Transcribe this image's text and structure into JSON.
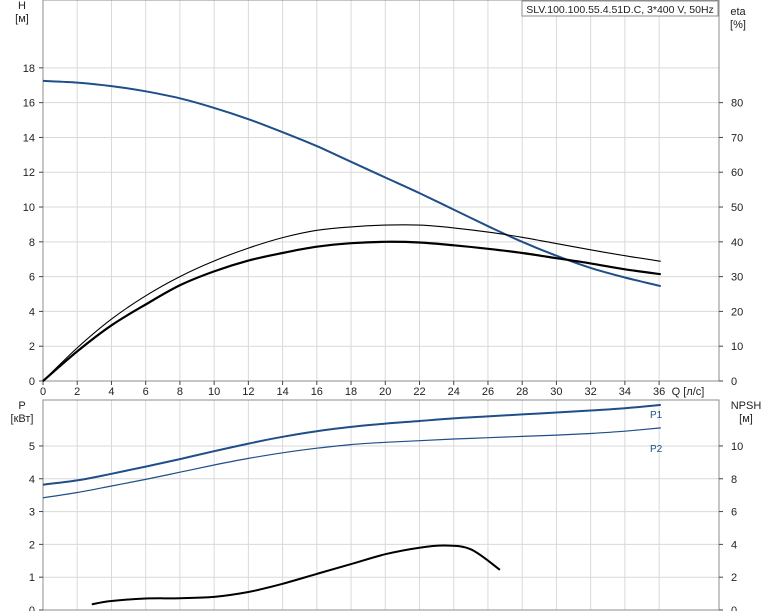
{
  "header": {
    "pump_label": "SLV.100.100.55.4.51D.C, 3*400 V, 50Hz"
  },
  "colors": {
    "curve_blue": "#1f4e88",
    "curve_black": "#000000",
    "grid": "#d9d9d9"
  },
  "chart_data": [
    {
      "type": "line",
      "title": "",
      "xlabel": "Q [л/с]",
      "ylabel_left": [
        "H",
        "[м]"
      ],
      "ylabel_right": [
        "eta",
        "[%]"
      ],
      "xlim": [
        0,
        39.5
      ],
      "ylim_left": [
        0,
        21.9
      ],
      "ylim_right": [
        0,
        109.5
      ],
      "x_ticks": [
        "0",
        "2",
        "4",
        "6",
        "8",
        "10",
        "12",
        "14",
        "16",
        "18",
        "20",
        "22",
        "24",
        "26",
        "28",
        "30",
        "32",
        "34",
        "36"
      ],
      "y_left_ticks": [
        "0",
        "2",
        "4",
        "6",
        "8",
        "10",
        "12",
        "14",
        "16",
        "18"
      ],
      "y_right_ticks": [
        "0",
        "10",
        "20",
        "30",
        "40",
        "50",
        "60",
        "70",
        "80"
      ],
      "grid": true,
      "series": [
        {
          "name": "",
          "axis": "left",
          "color": "blue",
          "x": [
            0,
            2,
            4,
            6,
            8,
            10,
            12,
            14,
            16,
            18,
            20,
            22,
            24,
            26,
            28,
            30,
            32,
            34,
            36.1
          ],
          "y": [
            17.25,
            17.15,
            16.95,
            16.65,
            16.25,
            15.7,
            15.05,
            14.3,
            13.5,
            12.6,
            11.7,
            10.8,
            9.85,
            8.9,
            8.0,
            7.2,
            6.5,
            5.95,
            5.45
          ]
        },
        {
          "name": "",
          "axis": "right",
          "color": "black-thick",
          "x": [
            0,
            2,
            4,
            6,
            8,
            10,
            12,
            14,
            16,
            18,
            20,
            22,
            24,
            26,
            28,
            30,
            32,
            34,
            36.1
          ],
          "y": [
            0,
            8.5,
            16,
            22,
            27.5,
            31.5,
            34.6,
            36.8,
            38.6,
            39.6,
            40.0,
            39.8,
            39.0,
            38.0,
            36.8,
            35.3,
            33.8,
            32.1,
            30.7
          ]
        },
        {
          "name": "",
          "axis": "right",
          "color": "black-thin",
          "x": [
            0,
            2,
            4,
            6,
            8,
            10,
            12,
            14,
            16,
            18,
            20,
            22,
            24,
            26,
            28,
            30,
            32,
            34,
            36.1
          ],
          "y": [
            0,
            9.5,
            17.8,
            24.5,
            30.0,
            34.5,
            38.2,
            41.2,
            43.3,
            44.3,
            44.8,
            44.8,
            44.0,
            42.8,
            41.3,
            39.5,
            37.7,
            36.0,
            34.4
          ]
        }
      ]
    },
    {
      "type": "line",
      "title": "",
      "xlabel": "",
      "ylabel_left": [
        "P",
        "[кВт]"
      ],
      "ylabel_right": [
        "NPSH",
        "[м]"
      ],
      "xlim": [
        0,
        39.5
      ],
      "ylim_left": [
        0,
        6.4
      ],
      "ylim_right": [
        0,
        12.8
      ],
      "y_left_ticks": [
        "0",
        "1",
        "2",
        "3",
        "4",
        "5"
      ],
      "y_right_ticks": [
        "0",
        "2",
        "4",
        "6",
        "8",
        "10"
      ],
      "grid": true,
      "series": [
        {
          "name": "P1",
          "axis": "left",
          "color": "blue",
          "x": [
            0,
            2,
            4,
            6,
            8,
            10,
            12,
            14,
            16,
            18,
            20,
            22,
            24,
            26,
            28,
            30,
            32,
            34,
            36.1
          ],
          "y": [
            3.82,
            3.95,
            4.15,
            4.37,
            4.6,
            4.84,
            5.07,
            5.28,
            5.45,
            5.58,
            5.68,
            5.76,
            5.84,
            5.9,
            5.96,
            6.02,
            6.08,
            6.15,
            6.25
          ]
        },
        {
          "name": "P2",
          "axis": "left",
          "color": "blue-thin",
          "x": [
            0,
            2,
            4,
            6,
            8,
            10,
            12,
            14,
            16,
            18,
            20,
            22,
            24,
            26,
            28,
            30,
            32,
            34,
            36.1
          ],
          "y": [
            3.42,
            3.58,
            3.78,
            3.98,
            4.2,
            4.42,
            4.62,
            4.79,
            4.93,
            5.04,
            5.11,
            5.16,
            5.21,
            5.25,
            5.29,
            5.33,
            5.38,
            5.45,
            5.55
          ]
        },
        {
          "name": "",
          "axis": "right",
          "color": "black",
          "x": [
            2.85,
            4,
            6,
            8,
            10,
            12,
            14,
            16,
            18,
            20,
            22,
            23.5,
            25,
            26.7
          ],
          "y": [
            0.35,
            0.55,
            0.7,
            0.72,
            0.8,
            1.1,
            1.6,
            2.2,
            2.8,
            3.4,
            3.8,
            3.93,
            3.7,
            2.45
          ]
        }
      ]
    }
  ]
}
